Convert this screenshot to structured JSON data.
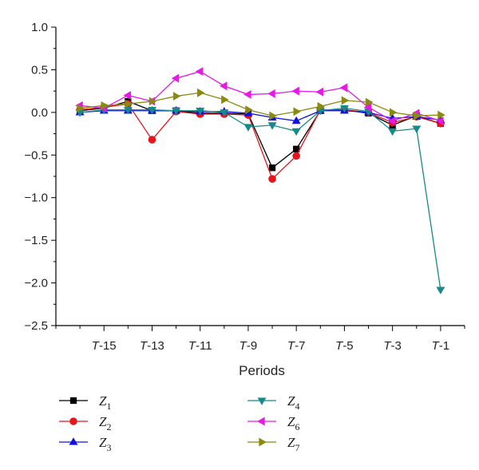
{
  "chart_data": {
    "type": "line",
    "xlabel": "Periods",
    "ylabel": "",
    "ylim": [
      -2.5,
      1.0
    ],
    "yticks": [
      1.0,
      0.5,
      0.0,
      -0.5,
      -1.0,
      -1.5,
      -2.0,
      -2.5
    ],
    "ytick_labels": [
      "1.0",
      "0.5",
      "0.0",
      "−0.5",
      "−1.0",
      "−1.5",
      "−2.0",
      "−2.5"
    ],
    "x": [
      -16,
      -15,
      -14,
      -13,
      -12,
      -11,
      -10,
      -9,
      -8,
      -7,
      -6,
      -5,
      -4,
      -3,
      -2,
      -1
    ],
    "xlim": [
      -17,
      0
    ],
    "xtick_labels": [
      {
        "x": -15,
        "prefix": "T",
        "suffix": "-15"
      },
      {
        "x": -13,
        "prefix": "T",
        "suffix": "-13"
      },
      {
        "x": -11,
        "prefix": "T",
        "suffix": "-11"
      },
      {
        "x": -9,
        "prefix": "T",
        "suffix": "-9"
      },
      {
        "x": -7,
        "prefix": "T",
        "suffix": "-7"
      },
      {
        "x": -5,
        "prefix": "T",
        "suffix": "-5"
      },
      {
        "x": -3,
        "prefix": "T",
        "suffix": "-3"
      },
      {
        "x": -1,
        "prefix": "T",
        "suffix": "-1"
      }
    ],
    "grid": false,
    "legend_position": "bottom",
    "series": [
      {
        "name": "Z",
        "sub": "1",
        "color": "#000000",
        "marker": "square",
        "values": [
          0.02,
          0.05,
          0.13,
          0.02,
          0.02,
          -0.01,
          -0.01,
          -0.02,
          -0.65,
          -0.43,
          0.02,
          0.03,
          -0.01,
          -0.15,
          -0.04,
          -0.13
        ]
      },
      {
        "name": "Z",
        "sub": "2",
        "color": "#e8141c",
        "marker": "circle",
        "values": [
          0.03,
          0.06,
          0.1,
          -0.32,
          0.01,
          -0.02,
          -0.02,
          -0.03,
          -0.78,
          -0.51,
          0.03,
          0.03,
          0.0,
          -0.12,
          -0.05,
          -0.13
        ]
      },
      {
        "name": "Z",
        "sub": "3",
        "color": "#1010e0",
        "marker": "triangle-up",
        "values": [
          0.0,
          0.02,
          0.02,
          0.02,
          0.02,
          0.01,
          0.01,
          -0.01,
          -0.06,
          -0.1,
          0.02,
          0.02,
          0.0,
          -0.07,
          -0.05,
          -0.09
        ]
      },
      {
        "name": "Z",
        "sub": "4",
        "color": "#168a8a",
        "marker": "triangle-down",
        "values": [
          0.0,
          0.03,
          0.03,
          0.03,
          0.02,
          0.02,
          0.0,
          -0.17,
          -0.15,
          -0.22,
          0.02,
          0.05,
          0.01,
          -0.22,
          -0.19,
          -2.08
        ]
      },
      {
        "name": "Z",
        "sub": "6",
        "color": "#e619e6",
        "marker": "triangle-left",
        "values": [
          0.08,
          0.05,
          0.2,
          0.13,
          0.4,
          0.48,
          0.31,
          0.21,
          0.22,
          0.25,
          0.24,
          0.29,
          0.06,
          -0.1,
          -0.01,
          -0.1
        ]
      },
      {
        "name": "Z",
        "sub": "7",
        "color": "#8a8a10",
        "marker": "triangle-right",
        "values": [
          0.05,
          0.08,
          0.1,
          0.13,
          0.19,
          0.23,
          0.15,
          0.03,
          -0.04,
          0.01,
          0.07,
          0.14,
          0.12,
          0.0,
          -0.04,
          -0.03
        ]
      }
    ]
  }
}
